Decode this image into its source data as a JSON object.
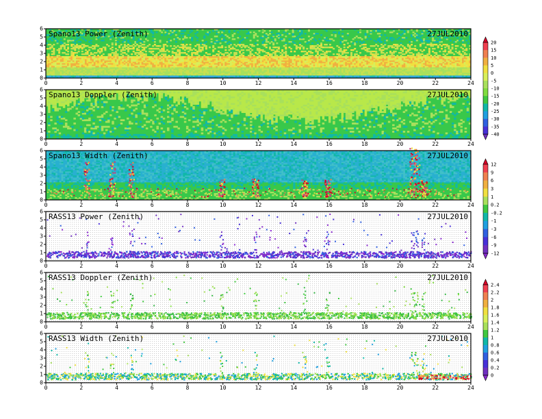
{
  "chart_data": [
    {
      "type": "heatmap",
      "title": "Spano13 Power (Zenith)",
      "date": "27JUL2010",
      "xlim": [
        0,
        24
      ],
      "ylim": [
        0,
        6
      ],
      "x_ticks": [
        "0",
        "2",
        "4",
        "6",
        "8",
        "10",
        "12",
        "14",
        "16",
        "18",
        "20",
        "22",
        "24"
      ],
      "y_ticks": [
        "0",
        "1",
        "2",
        "3",
        "4",
        "5",
        "6"
      ],
      "colorbar": "A"
    },
    {
      "type": "heatmap",
      "title": "Spano13 Doppler (Zenith)",
      "date": "27JUL2010",
      "xlim": [
        0,
        24
      ],
      "ylim": [
        0,
        6
      ],
      "x_ticks": [
        "0",
        "2",
        "4",
        "6",
        "8",
        "10",
        "12",
        "14",
        "16",
        "18",
        "20",
        "22",
        "24"
      ],
      "y_ticks": [
        "0",
        "1",
        "2",
        "3",
        "4",
        "5",
        "6"
      ],
      "colorbar": "A"
    },
    {
      "type": "heatmap",
      "title": "Spano13 Width (Zenith)",
      "date": "27JUL2010",
      "xlim": [
        0,
        24
      ],
      "ylim": [
        0,
        6
      ],
      "x_ticks": [
        "0",
        "2",
        "4",
        "6",
        "8",
        "10",
        "12",
        "14",
        "16",
        "18",
        "20",
        "22",
        "24"
      ],
      "y_ticks": [
        "0",
        "1",
        "2",
        "3",
        "4",
        "5",
        "6"
      ],
      "colorbar": "A"
    },
    {
      "type": "heatmap",
      "title": "RASS13 Power (Zenith)",
      "date": "27JUL2010",
      "xlim": [
        0,
        24
      ],
      "ylim": [
        0,
        6
      ],
      "x_ticks": [
        "0",
        "2",
        "4",
        "6",
        "8",
        "10",
        "12",
        "14",
        "16",
        "18",
        "20",
        "22",
        "24"
      ],
      "y_ticks": [
        "0",
        "1",
        "2",
        "3",
        "4",
        "5",
        "6"
      ],
      "colorbar": "B"
    },
    {
      "type": "heatmap",
      "title": "RASS13 Doppler (Zenith)",
      "date": "27JUL2010",
      "xlim": [
        0,
        24
      ],
      "ylim": [
        0,
        6
      ],
      "x_ticks": [
        "0",
        "2",
        "4",
        "6",
        "8",
        "10",
        "12",
        "14",
        "16",
        "18",
        "20",
        "22",
        "24"
      ],
      "y_ticks": [
        "0",
        "1",
        "2",
        "3",
        "4",
        "5",
        "6"
      ],
      "colorbar": "C"
    },
    {
      "type": "heatmap",
      "title": "RASS13 Width (Zenith)",
      "date": "27JUL2010",
      "xlim": [
        0,
        24
      ],
      "ylim": [
        0,
        6
      ],
      "x_ticks": [
        "0",
        "2",
        "4",
        "6",
        "8",
        "10",
        "12",
        "14",
        "16",
        "18",
        "20",
        "22",
        "24"
      ],
      "y_ticks": [
        "0",
        "1",
        "2",
        "3",
        "4",
        "5",
        "6"
      ],
      "colorbar": "C"
    }
  ],
  "colorbars": {
    "A": {
      "labels": [
        "20",
        "15",
        "10",
        "5",
        "0",
        "-5",
        "-10",
        "-15",
        "-20",
        "-25",
        "-30",
        "-35",
        "-40"
      ],
      "colors": [
        "#d80028",
        "#f04050",
        "#f08050",
        "#f0b040",
        "#f0e040",
        "#d8ef5a",
        "#a8e05c",
        "#80dc40",
        "#40c840",
        "#10b8a8",
        "#20a0e0",
        "#3060e0",
        "#4830d8",
        "#7030c0"
      ]
    },
    "B": {
      "labels": [
        "12",
        "9",
        "6",
        "3",
        "1",
        "0.2",
        "-0.2",
        "-1",
        "-3",
        "-6",
        "-9",
        "-12"
      ],
      "colors": [
        "#d80028",
        "#f04050",
        "#f08050",
        "#f0b040",
        "#f0e040",
        "#a8e05c",
        "#40c840",
        "#10b8a8",
        "#20a0e0",
        "#3060e0",
        "#4830d8",
        "#7030c0",
        "#8a2ad0"
      ]
    },
    "C": {
      "labels": [
        "2.4",
        "2.2",
        "2",
        "1.8",
        "1.6",
        "1.4",
        "1.2",
        "1",
        "0.8",
        "0.6",
        "0.4",
        "0.2",
        "0"
      ],
      "colors": [
        "#d80028",
        "#f04050",
        "#f08050",
        "#f0b040",
        "#f0e040",
        "#d8ef5a",
        "#a8e05c",
        "#40c840",
        "#10b8a8",
        "#20a0e0",
        "#3060e0",
        "#4830d8",
        "#7030c0",
        "#8a2ad0"
      ]
    }
  }
}
